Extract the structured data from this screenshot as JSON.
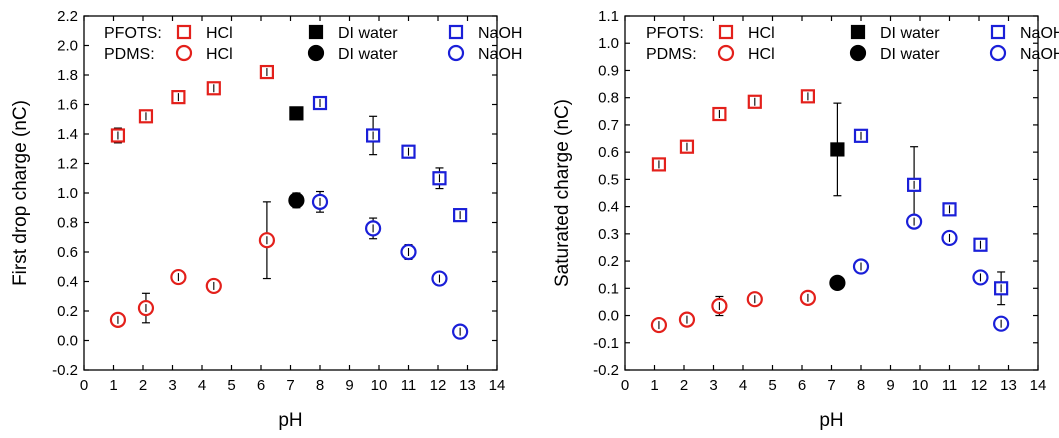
{
  "colors": {
    "HCl": "#e3201b",
    "DI water": "#000000",
    "NaOH": "#1a1fd8"
  },
  "chart_data": [
    {
      "type": "scatter",
      "xlabel": "pH",
      "ylabel": "First drop charge (nC)",
      "xlim": [
        0,
        14
      ],
      "ylim": [
        -0.2,
        2.2
      ],
      "xticks": [
        0,
        1,
        2,
        3,
        4,
        5,
        6,
        7,
        8,
        9,
        10,
        11,
        12,
        13,
        14
      ],
      "yticks": [
        -0.2,
        0.0,
        0.2,
        0.4,
        0.6,
        0.8,
        1.0,
        1.2,
        1.4,
        1.6,
        1.8,
        2.0,
        2.2
      ],
      "grid": false,
      "legend_position": "top",
      "legend": {
        "rows": [
          {
            "label": "PFOTS:",
            "marker": "square",
            "items": [
              "HCl",
              "DI water",
              "NaOH"
            ]
          },
          {
            "label": "PDMS:",
            "marker": "circle",
            "items": [
              "HCl",
              "DI water",
              "NaOH"
            ]
          }
        ]
      },
      "series": [
        {
          "surface": "PFOTS",
          "solution": "HCl",
          "marker": "square",
          "filled": false,
          "points": [
            {
              "x": 1.15,
              "y": 1.39,
              "err": 0.05
            },
            {
              "x": 2.1,
              "y": 1.52,
              "err": 0.03
            },
            {
              "x": 3.2,
              "y": 1.65,
              "err": 0.04
            },
            {
              "x": 4.4,
              "y": 1.71,
              "err": 0.04
            },
            {
              "x": 6.2,
              "y": 1.82,
              "err": 0.03
            }
          ]
        },
        {
          "surface": "PFOTS",
          "solution": "DI water",
          "marker": "square",
          "filled": true,
          "points": [
            {
              "x": 7.2,
              "y": 1.54,
              "err": 0.0
            }
          ]
        },
        {
          "surface": "PFOTS",
          "solution": "NaOH",
          "marker": "square",
          "filled": false,
          "points": [
            {
              "x": 8.0,
              "y": 1.61,
              "err": 0.03
            },
            {
              "x": 9.8,
              "y": 1.39,
              "err": 0.13
            },
            {
              "x": 11.0,
              "y": 1.28,
              "err": 0.04
            },
            {
              "x": 12.05,
              "y": 1.1,
              "err": 0.07
            },
            {
              "x": 12.75,
              "y": 0.85,
              "err": 0.02
            }
          ]
        },
        {
          "surface": "PDMS",
          "solution": "HCl",
          "marker": "circle",
          "filled": false,
          "points": [
            {
              "x": 1.15,
              "y": 0.14,
              "err": 0.03
            },
            {
              "x": 2.1,
              "y": 0.22,
              "err": 0.1
            },
            {
              "x": 3.2,
              "y": 0.43,
              "err": 0.03
            },
            {
              "x": 4.4,
              "y": 0.37,
              "err": 0.02
            },
            {
              "x": 6.2,
              "y": 0.68,
              "err": 0.26
            }
          ]
        },
        {
          "surface": "PDMS",
          "solution": "DI water",
          "marker": "circle",
          "filled": true,
          "points": [
            {
              "x": 7.2,
              "y": 0.95,
              "err": 0.05
            }
          ]
        },
        {
          "surface": "PDMS",
          "solution": "NaOH",
          "marker": "circle",
          "filled": false,
          "points": [
            {
              "x": 8.0,
              "y": 0.94,
              "err": 0.07
            },
            {
              "x": 9.8,
              "y": 0.76,
              "err": 0.07
            },
            {
              "x": 11.0,
              "y": 0.6,
              "err": 0.05
            },
            {
              "x": 12.05,
              "y": 0.42,
              "err": 0.02
            },
            {
              "x": 12.75,
              "y": 0.06,
              "err": 0.03
            }
          ]
        }
      ]
    },
    {
      "type": "scatter",
      "xlabel": "pH",
      "ylabel": "Saturated charge (nC)",
      "xlim": [
        0,
        14
      ],
      "ylim": [
        -0.2,
        1.1
      ],
      "xticks": [
        0,
        1,
        2,
        3,
        4,
        5,
        6,
        7,
        8,
        9,
        10,
        11,
        12,
        13,
        14
      ],
      "yticks": [
        -0.2,
        -0.1,
        0.0,
        0.1,
        0.2,
        0.3,
        0.4,
        0.5,
        0.6,
        0.7,
        0.8,
        0.9,
        1.0,
        1.1
      ],
      "grid": false,
      "legend_position": "top",
      "legend": {
        "rows": [
          {
            "label": "PFOTS:",
            "marker": "square",
            "items": [
              "HCl",
              "DI water",
              "NaOH"
            ]
          },
          {
            "label": "PDMS:",
            "marker": "circle",
            "items": [
              "HCl",
              "DI water",
              "NaOH"
            ]
          }
        ]
      },
      "series": [
        {
          "surface": "PFOTS",
          "solution": "HCl",
          "marker": "square",
          "filled": false,
          "points": [
            {
              "x": 1.15,
              "y": 0.555,
              "err": 0.02
            },
            {
              "x": 2.1,
              "y": 0.62,
              "err": 0.015
            },
            {
              "x": 3.2,
              "y": 0.74,
              "err": 0.015
            },
            {
              "x": 4.4,
              "y": 0.785,
              "err": 0.015
            },
            {
              "x": 6.2,
              "y": 0.805,
              "err": 0.02
            }
          ]
        },
        {
          "surface": "PFOTS",
          "solution": "DI water",
          "marker": "square",
          "filled": true,
          "points": [
            {
              "x": 7.2,
              "y": 0.61,
              "err": 0.17
            }
          ]
        },
        {
          "surface": "PFOTS",
          "solution": "NaOH",
          "marker": "square",
          "filled": false,
          "points": [
            {
              "x": 8.0,
              "y": 0.66,
              "err": 0.015
            },
            {
              "x": 9.8,
              "y": 0.48,
              "err": 0.14
            },
            {
              "x": 11.0,
              "y": 0.39,
              "err": 0.015
            },
            {
              "x": 12.05,
              "y": 0.26,
              "err": 0.015
            },
            {
              "x": 12.75,
              "y": 0.1,
              "err": 0.06
            }
          ]
        },
        {
          "surface": "PDMS",
          "solution": "HCl",
          "marker": "circle",
          "filled": false,
          "points": [
            {
              "x": 1.15,
              "y": -0.035,
              "err": 0.015
            },
            {
              "x": 2.1,
              "y": -0.015,
              "err": 0.01
            },
            {
              "x": 3.2,
              "y": 0.035,
              "err": 0.035
            },
            {
              "x": 4.4,
              "y": 0.06,
              "err": 0.015
            },
            {
              "x": 6.2,
              "y": 0.065,
              "err": 0.015
            }
          ]
        },
        {
          "surface": "PDMS",
          "solution": "DI water",
          "marker": "circle",
          "filled": true,
          "points": [
            {
              "x": 7.2,
              "y": 0.12,
              "err": 0.0
            }
          ]
        },
        {
          "surface": "PDMS",
          "solution": "NaOH",
          "marker": "circle",
          "filled": false,
          "points": [
            {
              "x": 8.0,
              "y": 0.18,
              "err": 0.015
            },
            {
              "x": 9.8,
              "y": 0.345,
              "err": 0.015
            },
            {
              "x": 11.0,
              "y": 0.285,
              "err": 0.015
            },
            {
              "x": 12.05,
              "y": 0.14,
              "err": 0.02
            },
            {
              "x": 12.75,
              "y": -0.03,
              "err": 0.01
            }
          ]
        }
      ]
    }
  ]
}
